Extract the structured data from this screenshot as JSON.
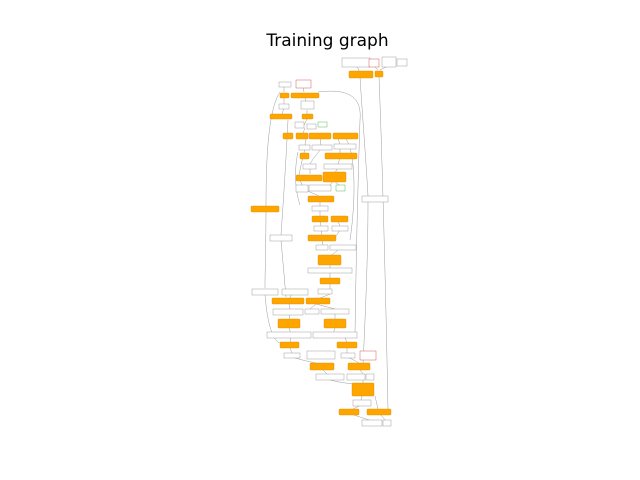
{
  "figure": {
    "title": "Training graph",
    "colors": {
      "operation": "#ffa500",
      "tensor_border": "#888888",
      "edge": "#9a9a9a",
      "highlight_red": "#cc3333",
      "highlight_green": "#33aa33"
    }
  }
}
